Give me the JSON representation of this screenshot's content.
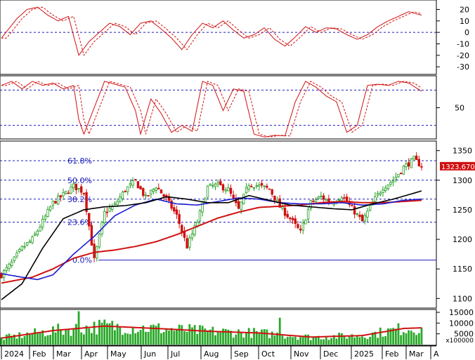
{
  "chart_data": {
    "type": "candlestick",
    "price_axis": {
      "ticks": [
        "1100",
        "1150",
        "1200",
        "1250",
        "1300",
        "1350"
      ],
      "range": [
        1085,
        1365
      ]
    },
    "fib_levels": [
      {
        "label": "61.8%",
        "value": 1333
      },
      {
        "label": "50.0%",
        "value": 1300
      },
      {
        "label": "38.2%",
        "value": 1268
      },
      {
        "label": "23.6%",
        "value": 1229
      },
      {
        "label": "0.0%",
        "value": 1165
      }
    ],
    "last_price": "1323.670",
    "x_axis": {
      "labels": [
        "2024",
        "Feb",
        "Mar",
        "Apr",
        "May",
        "Jun",
        "Jul",
        "Aug",
        "Sep",
        "Oct",
        "Nov",
        "Dec",
        "2025",
        "Feb",
        "Mar",
        "A"
      ]
    },
    "close_series": [
      [
        0,
        1140
      ],
      [
        4,
        1160
      ],
      [
        8,
        1185
      ],
      [
        12,
        1200
      ],
      [
        16,
        1230
      ],
      [
        20,
        1262
      ],
      [
        24,
        1275
      ],
      [
        28,
        1290
      ],
      [
        32,
        1280
      ],
      [
        36,
        1165
      ],
      [
        40,
        1245
      ],
      [
        44,
        1258
      ],
      [
        48,
        1284
      ],
      [
        52,
        1298
      ],
      [
        56,
        1270
      ],
      [
        60,
        1290
      ],
      [
        64,
        1268
      ],
      [
        68,
        1240
      ],
      [
        72,
        1188
      ],
      [
        76,
        1230
      ],
      [
        80,
        1288
      ],
      [
        84,
        1292
      ],
      [
        88,
        1284
      ],
      [
        92,
        1250
      ],
      [
        96,
        1294
      ],
      [
        100,
        1290
      ],
      [
        104,
        1285
      ],
      [
        108,
        1255
      ],
      [
        112,
        1235
      ],
      [
        116,
        1212
      ],
      [
        120,
        1262
      ],
      [
        124,
        1272
      ],
      [
        128,
        1262
      ],
      [
        132,
        1274
      ],
      [
        136,
        1252
      ],
      [
        140,
        1230
      ],
      [
        144,
        1262
      ],
      [
        148,
        1288
      ],
      [
        152,
        1300
      ],
      [
        156,
        1322
      ],
      [
        160,
        1335
      ],
      [
        163,
        1324
      ]
    ],
    "ma_black": [
      [
        0,
        1098
      ],
      [
        8,
        1125
      ],
      [
        16,
        1185
      ],
      [
        24,
        1235
      ],
      [
        32,
        1250
      ],
      [
        40,
        1255
      ],
      [
        48,
        1257
      ],
      [
        56,
        1262
      ],
      [
        64,
        1272
      ],
      [
        72,
        1268
      ],
      [
        80,
        1262
      ],
      [
        88,
        1262
      ],
      [
        96,
        1274
      ],
      [
        104,
        1266
      ],
      [
        112,
        1258
      ],
      [
        120,
        1255
      ],
      [
        128,
        1252
      ],
      [
        136,
        1250
      ],
      [
        144,
        1260
      ],
      [
        152,
        1268
      ],
      [
        160,
        1278
      ],
      [
        163,
        1282
      ]
    ],
    "ma_blue": [
      [
        0,
        1142
      ],
      [
        8,
        1136
      ],
      [
        14,
        1132
      ],
      [
        20,
        1140
      ],
      [
        28,
        1175
      ],
      [
        36,
        1205
      ],
      [
        44,
        1240
      ],
      [
        52,
        1258
      ],
      [
        60,
        1268
      ],
      [
        68,
        1260
      ],
      [
        76,
        1258
      ],
      [
        84,
        1264
      ],
      [
        92,
        1270
      ],
      [
        100,
        1268
      ],
      [
        108,
        1262
      ],
      [
        116,
        1260
      ],
      [
        124,
        1260
      ],
      [
        132,
        1262
      ],
      [
        140,
        1258
      ],
      [
        148,
        1260
      ],
      [
        156,
        1266
      ],
      [
        163,
        1268
      ]
    ],
    "ma_red": [
      [
        0,
        1126
      ],
      [
        12,
        1136
      ],
      [
        20,
        1150
      ],
      [
        28,
        1168
      ],
      [
        36,
        1178
      ],
      [
        44,
        1182
      ],
      [
        52,
        1188
      ],
      [
        60,
        1196
      ],
      [
        68,
        1208
      ],
      [
        76,
        1222
      ],
      [
        84,
        1236
      ],
      [
        92,
        1246
      ],
      [
        100,
        1254
      ],
      [
        108,
        1256
      ],
      [
        116,
        1258
      ],
      [
        124,
        1262
      ],
      [
        132,
        1264
      ],
      [
        140,
        1262
      ],
      [
        148,
        1262
      ],
      [
        156,
        1264
      ],
      [
        163,
        1266
      ]
    ],
    "osc_top": {
      "ticks": [
        "20",
        "10",
        "0",
        "-10",
        "-20",
        "-30"
      ],
      "range": [
        -36,
        27
      ],
      "series": [
        [
          0,
          -5
        ],
        [
          6,
          12
        ],
        [
          10,
          20
        ],
        [
          14,
          22
        ],
        [
          18,
          15
        ],
        [
          22,
          10
        ],
        [
          26,
          14
        ],
        [
          30,
          -20
        ],
        [
          34,
          -8
        ],
        [
          38,
          0
        ],
        [
          42,
          8
        ],
        [
          46,
          5
        ],
        [
          50,
          -2
        ],
        [
          54,
          8
        ],
        [
          58,
          10
        ],
        [
          62,
          3
        ],
        [
          66,
          -5
        ],
        [
          70,
          -15
        ],
        [
          74,
          -2
        ],
        [
          78,
          8
        ],
        [
          82,
          4
        ],
        [
          86,
          10
        ],
        [
          90,
          2
        ],
        [
          94,
          -5
        ],
        [
          98,
          -2
        ],
        [
          102,
          4
        ],
        [
          106,
          -6
        ],
        [
          110,
          -12
        ],
        [
          114,
          -4
        ],
        [
          118,
          5
        ],
        [
          122,
          0
        ],
        [
          126,
          4
        ],
        [
          130,
          3
        ],
        [
          134,
          -2
        ],
        [
          138,
          -6
        ],
        [
          142,
          -2
        ],
        [
          146,
          5
        ],
        [
          150,
          10
        ],
        [
          154,
          14
        ],
        [
          158,
          18
        ],
        [
          163,
          15
        ]
      ]
    },
    "osc_mid": {
      "ticks": [
        "50"
      ],
      "range": [
        -2,
        102
      ],
      "levels": [
        80,
        20
      ],
      "series": [
        [
          0,
          88
        ],
        [
          4,
          95
        ],
        [
          8,
          82
        ],
        [
          12,
          95
        ],
        [
          16,
          88
        ],
        [
          20,
          92
        ],
        [
          24,
          82
        ],
        [
          28,
          88
        ],
        [
          30,
          30
        ],
        [
          32,
          5
        ],
        [
          36,
          50
        ],
        [
          40,
          95
        ],
        [
          44,
          90
        ],
        [
          48,
          85
        ],
        [
          52,
          45
        ],
        [
          54,
          5
        ],
        [
          58,
          65
        ],
        [
          62,
          40
        ],
        [
          66,
          8
        ],
        [
          70,
          20
        ],
        [
          74,
          10
        ],
        [
          78,
          95
        ],
        [
          82,
          88
        ],
        [
          86,
          45
        ],
        [
          90,
          82
        ],
        [
          94,
          78
        ],
        [
          98,
          5
        ],
        [
          102,
          0
        ],
        [
          106,
          3
        ],
        [
          110,
          2
        ],
        [
          114,
          60
        ],
        [
          118,
          95
        ],
        [
          122,
          85
        ],
        [
          126,
          70
        ],
        [
          130,
          60
        ],
        [
          134,
          8
        ],
        [
          138,
          20
        ],
        [
          142,
          88
        ],
        [
          146,
          90
        ],
        [
          150,
          88
        ],
        [
          154,
          95
        ],
        [
          158,
          92
        ],
        [
          163,
          78
        ]
      ]
    },
    "volume": {
      "ticks": [
        "15000",
        "10000",
        "5000"
      ],
      "multiplier": "x100000",
      "max": 16000,
      "ma": [
        [
          0,
          3000
        ],
        [
          20,
          6500
        ],
        [
          40,
          8600
        ],
        [
          60,
          7500
        ],
        [
          80,
          6200
        ],
        [
          100,
          5400
        ],
        [
          120,
          3500
        ],
        [
          140,
          4200
        ],
        [
          156,
          7500
        ],
        [
          163,
          7800
        ]
      ]
    }
  }
}
